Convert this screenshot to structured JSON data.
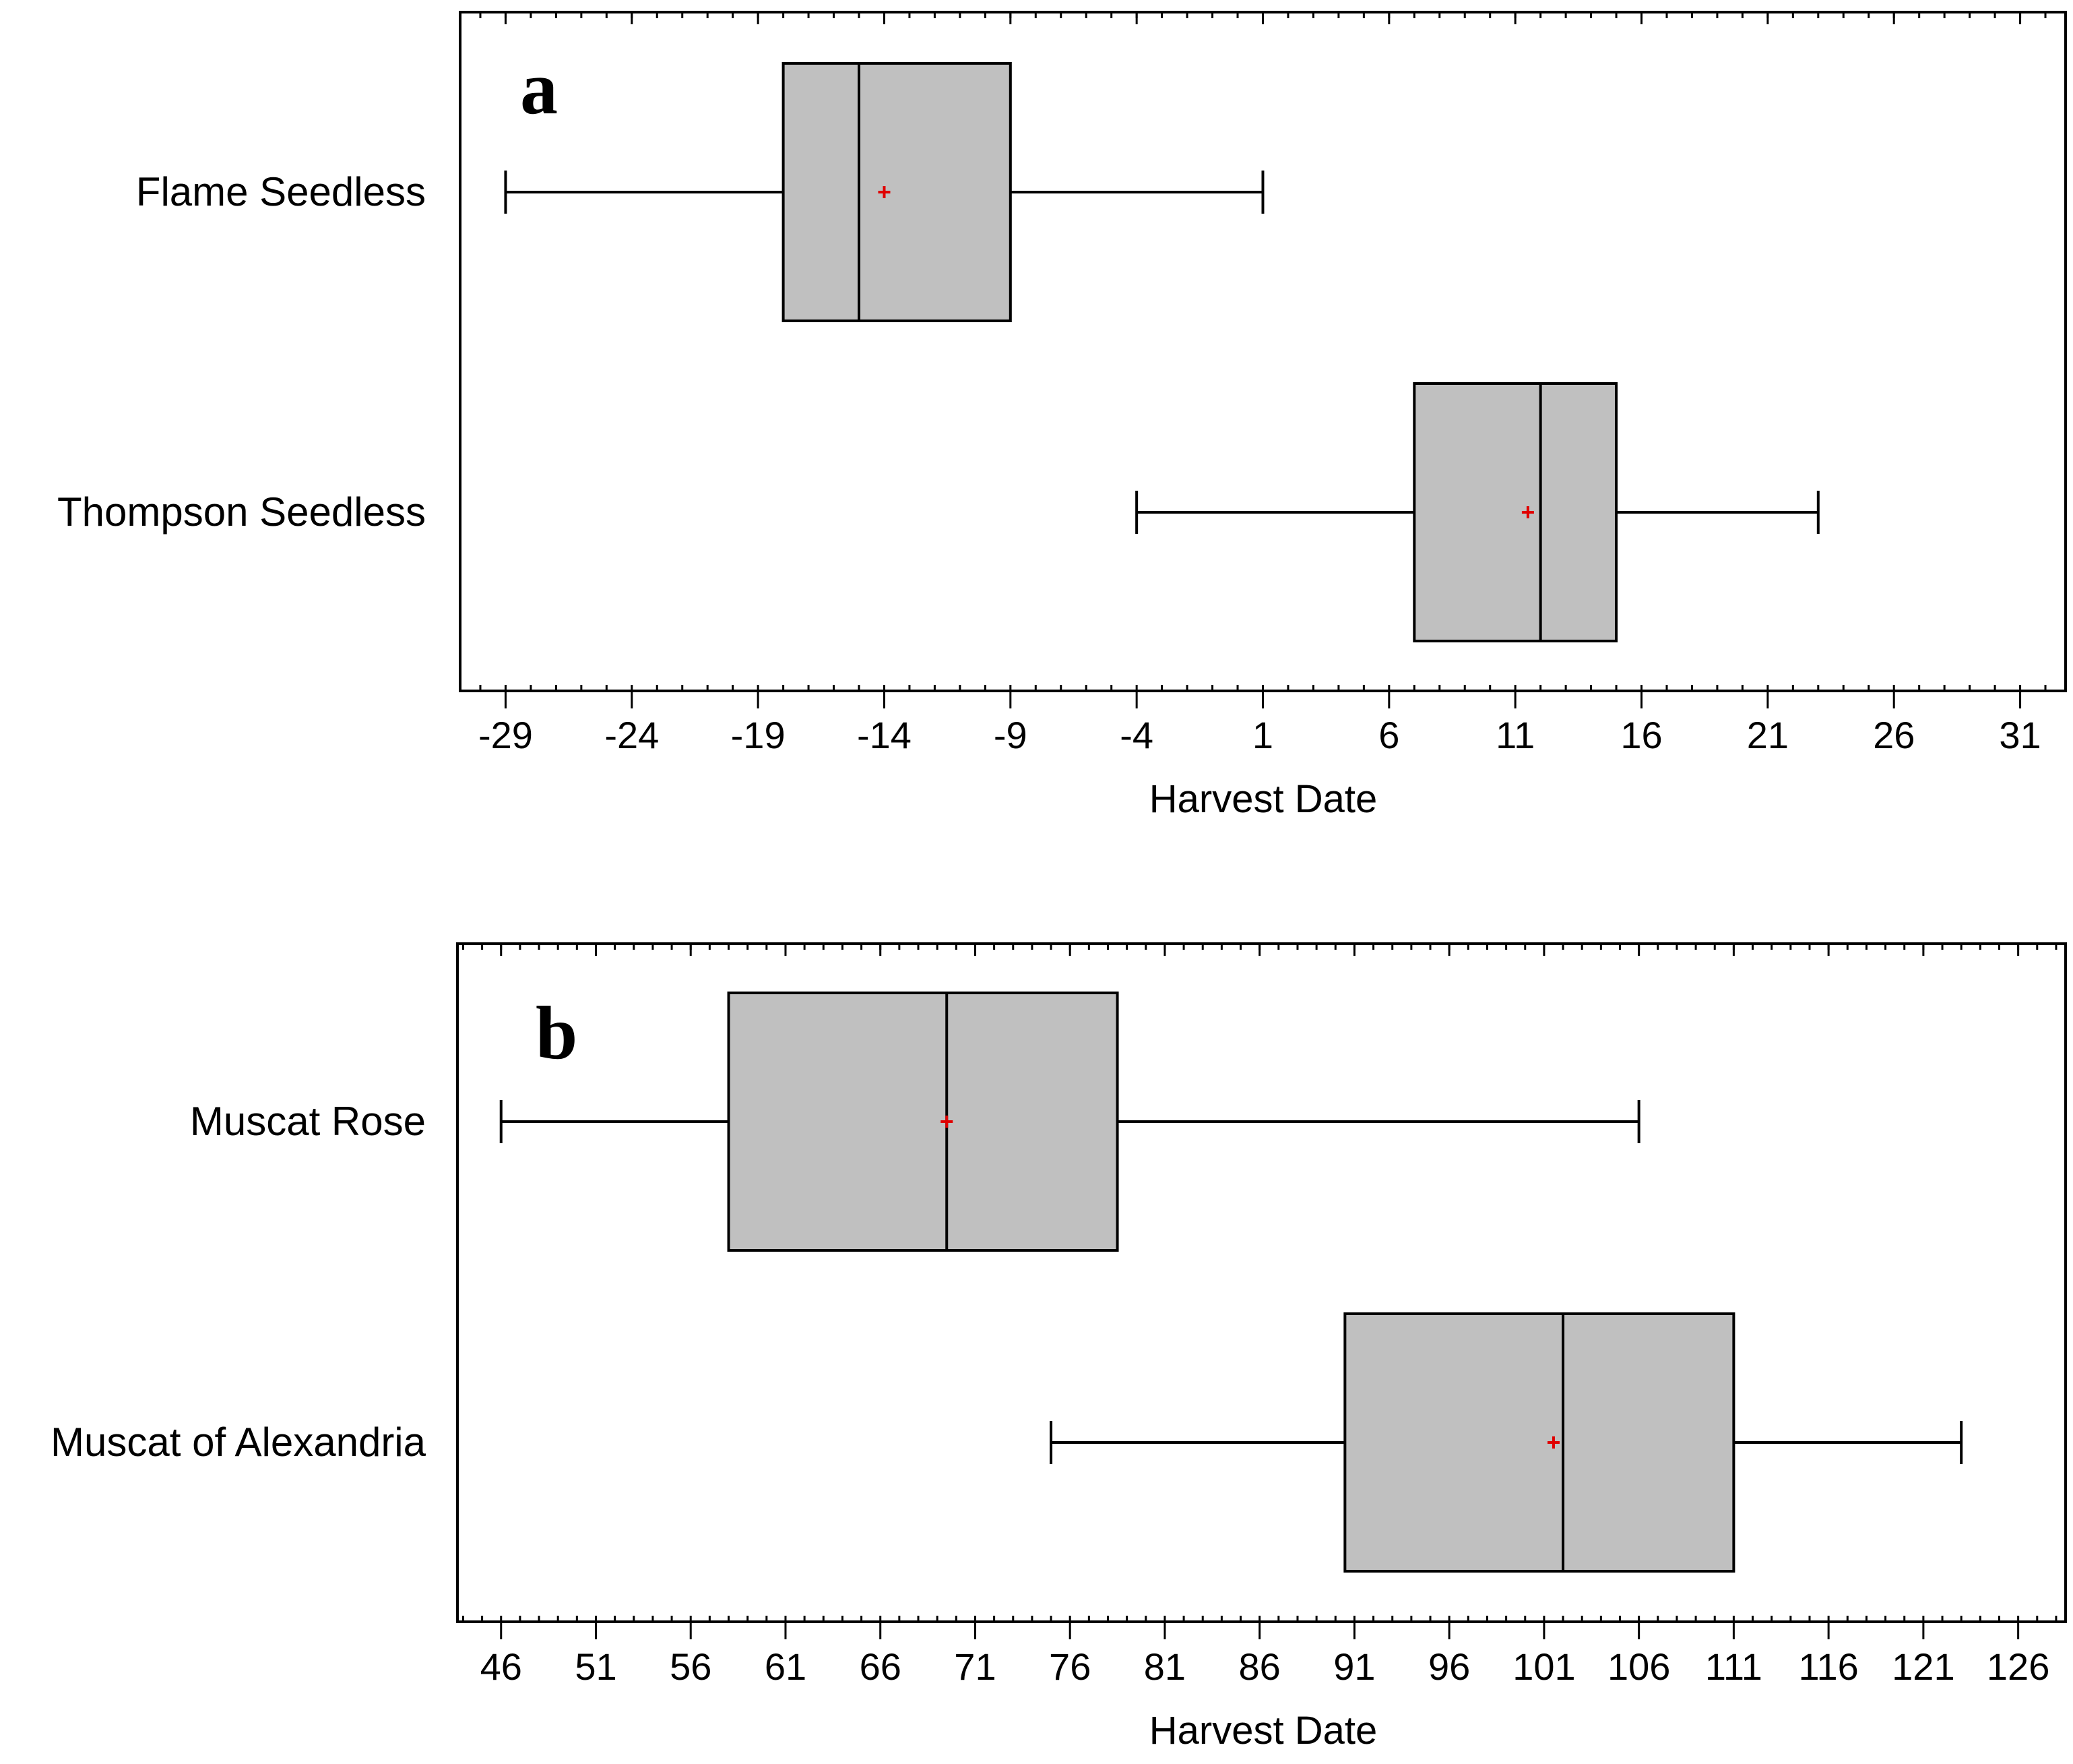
{
  "chart_data": [
    {
      "type": "boxplot",
      "panel_label": "a",
      "xlabel": "Harvest Date",
      "xlim": [
        -30.8,
        32.8
      ],
      "ticks": [
        -29,
        -24,
        -19,
        -14,
        -9,
        -4,
        1,
        6,
        11,
        16,
        21,
        26,
        31
      ],
      "tick_labels": [
        "-29",
        "-24",
        "-19",
        "-14",
        "-9",
        "-4",
        "1",
        "6",
        "11",
        "16",
        "21",
        "26",
        "31"
      ],
      "minor_step": 1,
      "series": [
        {
          "name": "Flame Seedless",
          "min": -29,
          "q1": -18,
          "median": -15,
          "q3": -9,
          "max": 1,
          "mean": -14
        },
        {
          "name": "Thompson Seedless",
          "min": -4,
          "q1": 7,
          "median": 12,
          "q3": 15,
          "max": 23,
          "mean": 11.5
        }
      ]
    },
    {
      "type": "boxplot",
      "panel_label": "b",
      "xlabel": "Harvest Date",
      "xlim": [
        43.7,
        128.5
      ],
      "ticks": [
        46,
        51,
        56,
        61,
        66,
        71,
        76,
        81,
        86,
        91,
        96,
        101,
        106,
        111,
        116,
        121,
        126
      ],
      "tick_labels": [
        "46",
        "51",
        "56",
        "61",
        "66",
        "71",
        "76",
        "81",
        "86",
        "91",
        "96",
        "101",
        "106",
        "111",
        "116",
        "121",
        "126"
      ],
      "minor_step": 1,
      "series": [
        {
          "name": "Muscat Rose",
          "min": 46,
          "q1": 58,
          "median": 69.5,
          "q3": 78.5,
          "max": 106,
          "mean": 69.5
        },
        {
          "name": "Muscat of Alexandria",
          "min": 75,
          "q1": 90.5,
          "median": 102,
          "q3": 111,
          "max": 123,
          "mean": 101.5
        }
      ]
    }
  ],
  "colors": {
    "box_fill": "#c0c0c0",
    "mean_marker": "#e00000",
    "line": "#000000"
  }
}
